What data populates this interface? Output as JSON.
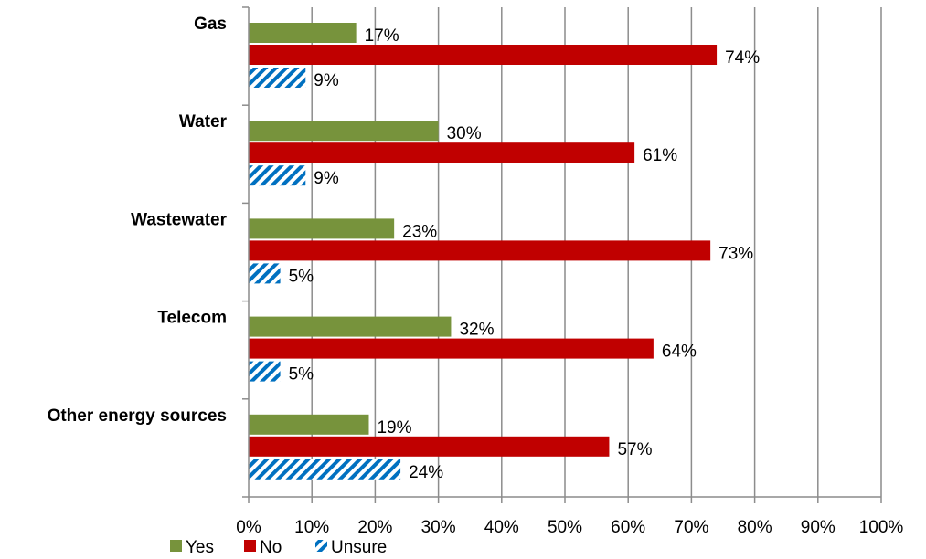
{
  "chart_data": {
    "type": "bar",
    "orientation": "horizontal",
    "categories": [
      "Gas",
      "Water",
      "Wastewater",
      "Telecom",
      "Other energy sources"
    ],
    "series": [
      {
        "name": "Yes",
        "values": [
          17,
          30,
          23,
          32,
          19
        ],
        "color": "#77933C",
        "pattern": "solid"
      },
      {
        "name": "No",
        "values": [
          74,
          61,
          73,
          64,
          57
        ],
        "color": "#C00000",
        "pattern": "solid"
      },
      {
        "name": "Unsure",
        "values": [
          9,
          9,
          5,
          5,
          24
        ],
        "color": "#0070C0",
        "pattern": "diagonal-stripes"
      }
    ],
    "data_labels": [
      [
        "17%",
        "30%",
        "23%",
        "32%",
        "19%"
      ],
      [
        "74%",
        "61%",
        "73%",
        "64%",
        "57%"
      ],
      [
        "9%",
        "9%",
        "5%",
        "5%",
        "24%"
      ]
    ],
    "x_ticks": [
      "0%",
      "10%",
      "20%",
      "30%",
      "40%",
      "50%",
      "60%",
      "70%",
      "80%",
      "90%",
      "100%"
    ],
    "xlim": [
      0,
      100
    ],
    "grid": "vertical",
    "legend": {
      "placement": "bottom-left",
      "entries": [
        "Yes",
        "No",
        "Unsure"
      ]
    },
    "title": "",
    "xlabel": "",
    "ylabel": ""
  }
}
